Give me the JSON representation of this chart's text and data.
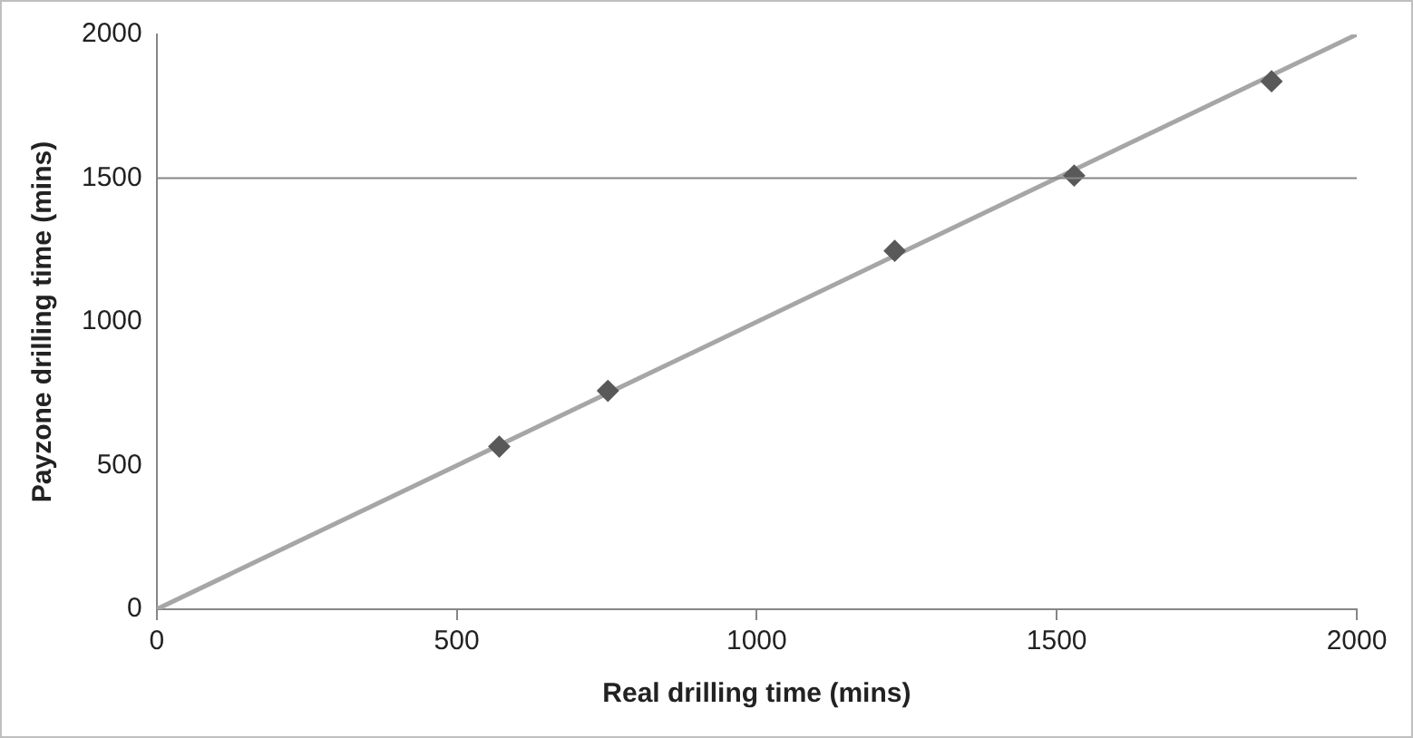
{
  "chart_data": {
    "type": "scatter",
    "xlabel": "Real drilling time (mins)",
    "ylabel": "Payzone drilling time (mins)",
    "xlim": [
      0,
      2000
    ],
    "ylim": [
      0,
      2000
    ],
    "xticks": [
      0,
      500,
      1000,
      1500,
      2000
    ],
    "yticks": [
      0,
      500,
      1000,
      1500,
      2000
    ],
    "grid": false,
    "legend": false,
    "ref_lines": [
      {
        "axis": "y",
        "value": 1500,
        "color": "#868686"
      }
    ],
    "series": [
      {
        "type": "line",
        "x": [
          0,
          2000
        ],
        "values": [
          0,
          2000
        ],
        "color": "#a6a6a6",
        "marker": "none",
        "line_style": "solid"
      },
      {
        "x": [
          571,
          752,
          1230,
          1529,
          1858
        ],
        "values": [
          566,
          760,
          1247,
          1509,
          1837
        ],
        "color": "#595959",
        "marker": "diamond"
      }
    ]
  }
}
